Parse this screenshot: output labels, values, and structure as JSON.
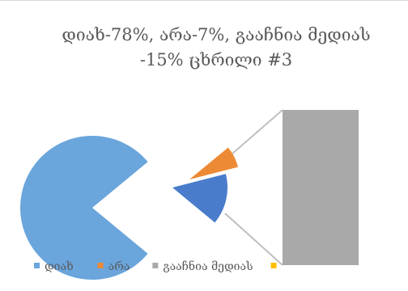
{
  "chart_data": {
    "type": "pie",
    "title_lines": [
      "დიახ-78%, არა-7%, გააჩნია მედიას",
      "-15% ცხრილი #3"
    ],
    "slices": [
      {
        "label": "დიახ",
        "value": 78,
        "color": "#6aa5dc"
      },
      {
        "label": "არა",
        "value": 7,
        "color": "#ed8a35"
      },
      {
        "label": "გააჩნია მედიას",
        "value": 15,
        "color": "#4a7ccc"
      }
    ],
    "secondary_bar": {
      "label": "გააჩნია მედიას",
      "value": 15,
      "color": "#a9a9a9"
    },
    "legend": {
      "placement": "bottom",
      "items": [
        {
          "label": "დიახ",
          "color": "#6aa5dc"
        },
        {
          "label": "არა",
          "color": "#ed8a35"
        },
        {
          "label": "გააჩნია მედიას",
          "color": "#a9a9a9"
        },
        {
          "label": "",
          "color": "#ffc000"
        }
      ]
    }
  }
}
